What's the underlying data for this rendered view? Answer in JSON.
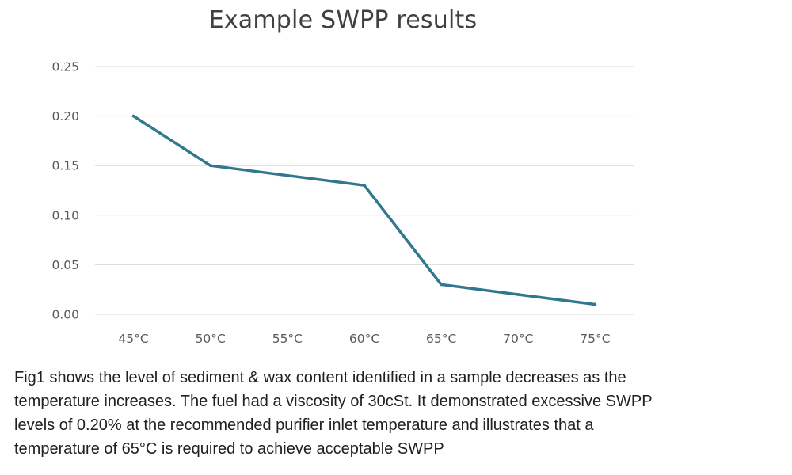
{
  "chart_data": {
    "type": "line",
    "title": "Example SWPP results",
    "xlabel": "",
    "ylabel": "",
    "categories": [
      "45°C",
      "50°C",
      "55°C",
      "60°C",
      "65°C",
      "70°C",
      "75°C"
    ],
    "series": [
      {
        "values": [
          0.2,
          0.15,
          0.14,
          0.13,
          0.03,
          0.02,
          0.01
        ]
      }
    ],
    "ylim": [
      0,
      0.25
    ],
    "yticks": [
      "0.00",
      "0.05",
      "0.10",
      "0.15",
      "0.20",
      "0.25"
    ],
    "grid": true,
    "legend": "none",
    "colors": {
      "line": "#31788F",
      "grid": "#D9D9D9",
      "tick_text": "#595959"
    }
  },
  "caption": {
    "lines": [
      "Fig1 shows the level of sediment & wax content identified in a sample decreases as the",
      "temperature increases.  The fuel had a viscosity of 30cSt.  It demonstrated excessive SWPP",
      "levels of 0.20% at the recommended purifier inlet temperature and illustrates that a",
      "temperature of 65°C is required to achieve acceptable SWPP"
    ]
  }
}
